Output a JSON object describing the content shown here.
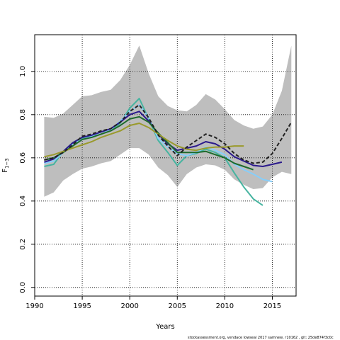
{
  "chart_data": {
    "type": "line",
    "title": "",
    "xlabel": "Years",
    "ylabel": "F",
    "ylabel_subscript": "1−3",
    "xlim": [
      1990,
      2017.5
    ],
    "ylim": [
      -0.04,
      1.17
    ],
    "x_ticks": [
      1990,
      1995,
      2000,
      2005,
      2010,
      2015
    ],
    "y_ticks": [
      0.0,
      0.2,
      0.4,
      0.6,
      0.8,
      1.0
    ],
    "y_tick_labels": [
      "0.0",
      "0.2",
      "0.4",
      "0.6",
      "0.8",
      "1.0"
    ],
    "grid": true,
    "grid_style": "dotted",
    "band": {
      "color": "#bebebe",
      "x": [
        1991,
        1992,
        1993,
        1994,
        1995,
        1996,
        1997,
        1998,
        1999,
        2000,
        2001,
        2002,
        2003,
        2004,
        2005,
        2006,
        2007,
        2008,
        2009,
        2010,
        2011,
        2012,
        2013,
        2014,
        2015,
        2016,
        2017
      ],
      "upper": [
        0.79,
        0.785,
        0.805,
        0.845,
        0.885,
        0.89,
        0.905,
        0.915,
        0.96,
        1.03,
        1.12,
        0.99,
        0.885,
        0.84,
        0.82,
        0.815,
        0.845,
        0.895,
        0.87,
        0.825,
        0.775,
        0.75,
        0.735,
        0.745,
        0.8,
        0.91,
        1.12
      ],
      "lower": [
        0.42,
        0.44,
        0.495,
        0.525,
        0.55,
        0.56,
        0.575,
        0.585,
        0.615,
        0.645,
        0.645,
        0.615,
        0.555,
        0.52,
        0.465,
        0.525,
        0.555,
        0.57,
        0.565,
        0.545,
        0.5,
        0.475,
        0.455,
        0.46,
        0.51,
        0.535,
        0.525
      ]
    },
    "series": [
      {
        "color": "#46b4a0",
        "width": 2,
        "dash": "",
        "x": [
          1991,
          1992,
          1993,
          1994,
          1995,
          1996,
          1997,
          1998,
          1999,
          2000,
          2001,
          2002,
          2003,
          2004,
          2005,
          2006,
          2007,
          2008,
          2009,
          2010,
          2011,
          2012,
          2013,
          2014
        ],
        "values": [
          0.56,
          0.57,
          0.63,
          0.67,
          0.69,
          0.7,
          0.72,
          0.73,
          0.76,
          0.83,
          0.875,
          0.78,
          0.68,
          0.625,
          0.565,
          0.61,
          0.62,
          0.64,
          0.625,
          0.6,
          0.53,
          0.465,
          0.41,
          0.38
        ]
      },
      {
        "color": "#87cefa",
        "width": 2,
        "dash": "",
        "x": [
          1991,
          1992,
          1993,
          1994,
          1995,
          1996,
          1997,
          1998,
          1999,
          2000,
          2001,
          2002,
          2003,
          2004,
          2005,
          2006,
          2007,
          2008,
          2009,
          2010,
          2011,
          2012,
          2013,
          2014,
          2015
        ],
        "values": [
          0.575,
          0.585,
          0.625,
          0.665,
          0.685,
          0.7,
          0.72,
          0.73,
          0.77,
          0.815,
          0.845,
          0.785,
          0.69,
          0.65,
          0.62,
          0.61,
          0.625,
          0.65,
          0.635,
          0.615,
          0.57,
          0.545,
          0.525,
          0.5,
          0.49
        ]
      },
      {
        "color": "#2b1a8c",
        "width": 2,
        "dash": "",
        "x": [
          1991,
          1992,
          1993,
          1994,
          1995,
          1996,
          1997,
          1998,
          1999,
          2000,
          2001,
          2002,
          2003,
          2004,
          2005,
          2006,
          2007,
          2008,
          2009,
          2010,
          2011,
          2012,
          2013,
          2014,
          2015,
          2016
        ],
        "values": [
          0.58,
          0.595,
          0.63,
          0.67,
          0.695,
          0.705,
          0.72,
          0.735,
          0.765,
          0.8,
          0.815,
          0.77,
          0.71,
          0.665,
          0.635,
          0.645,
          0.655,
          0.675,
          0.665,
          0.64,
          0.605,
          0.585,
          0.565,
          0.56,
          0.57,
          0.58
        ]
      },
      {
        "color": "#1e6b2d",
        "width": 2,
        "dash": "",
        "x": [
          1991,
          1992,
          1993,
          1994,
          1995,
          1996,
          1997,
          1998,
          1999,
          2000,
          2001,
          2002,
          2003,
          2004,
          2005,
          2006,
          2007,
          2008,
          2009,
          2010,
          2011,
          2012,
          2013
        ],
        "values": [
          0.59,
          0.6,
          0.625,
          0.655,
          0.685,
          0.695,
          0.71,
          0.725,
          0.75,
          0.78,
          0.79,
          0.765,
          0.715,
          0.67,
          0.625,
          0.625,
          0.625,
          0.63,
          0.615,
          0.6,
          0.575,
          0.56,
          0.545
        ]
      },
      {
        "color": "#9a9a2c",
        "width": 2,
        "dash": "",
        "x": [
          1991,
          1992,
          1993,
          1994,
          1995,
          1996,
          1997,
          1998,
          1999,
          2000,
          2001,
          2002,
          2003,
          2004,
          2005,
          2006,
          2007,
          2008,
          2009,
          2010,
          2011,
          2012
        ],
        "values": [
          0.605,
          0.615,
          0.63,
          0.645,
          0.66,
          0.675,
          0.695,
          0.71,
          0.725,
          0.75,
          0.76,
          0.74,
          0.71,
          0.68,
          0.655,
          0.64,
          0.635,
          0.645,
          0.65,
          0.65,
          0.655,
          0.655
        ]
      },
      {
        "color": "#222222",
        "width": 2,
        "dash": "5,3",
        "x": [
          1991,
          1992,
          1993,
          1994,
          1995,
          1996,
          1997,
          1998,
          1999,
          2000,
          2001,
          2002,
          2003,
          2004,
          2005,
          2006,
          2007,
          2008,
          2009,
          2010,
          2011,
          2012,
          2013,
          2014,
          2015,
          2016,
          2017
        ],
        "values": [
          0.59,
          0.6,
          0.625,
          0.66,
          0.7,
          0.71,
          0.725,
          0.735,
          0.765,
          0.815,
          0.845,
          0.785,
          0.705,
          0.655,
          0.61,
          0.65,
          0.68,
          0.71,
          0.695,
          0.665,
          0.62,
          0.59,
          0.575,
          0.58,
          0.62,
          0.69,
          0.765
        ]
      }
    ]
  },
  "footer_text": "stockassessment.org, vendace lowseal 2017 samnew, r10162 , git: 25de874f3c0c"
}
